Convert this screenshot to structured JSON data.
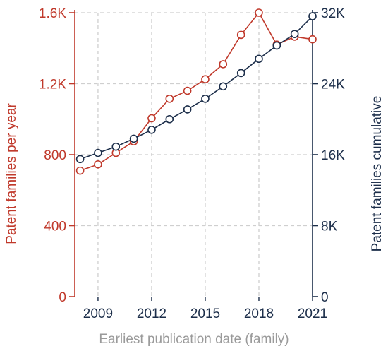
{
  "chart_data": {
    "type": "line",
    "xlabel": "Earliest publication date (family)",
    "ylabel_left": "Patent families per year",
    "ylabel_right": "Patent families cumulative",
    "x": [
      2008,
      2009,
      2010,
      2011,
      2012,
      2013,
      2014,
      2015,
      2016,
      2017,
      2018,
      2019,
      2020,
      2021
    ],
    "x_ticks": [
      "2009",
      "2012",
      "2015",
      "2018",
      "2021"
    ],
    "x_tick_values": [
      2009,
      2012,
      2015,
      2018,
      2021
    ],
    "xlim": [
      2007.7,
      2021
    ],
    "left_axis": {
      "ylim": [
        0,
        1600
      ],
      "ticks": [
        "0",
        "400",
        "800",
        "1.2K",
        "1.6K"
      ],
      "tick_values": [
        0,
        400,
        800,
        1200,
        1600
      ],
      "color": "#c0392b"
    },
    "right_axis": {
      "ylim": [
        0,
        32000
      ],
      "ticks": [
        "0",
        "8K",
        "16K",
        "24K",
        "32K"
      ],
      "tick_values": [
        0,
        8000,
        16000,
        24000,
        32000
      ],
      "color": "#1c2e4a"
    },
    "series": [
      {
        "axis": "left",
        "color": "#c0392b",
        "values": [
          710,
          745,
          810,
          875,
          1005,
          1115,
          1160,
          1225,
          1310,
          1475,
          1600,
          1420,
          1465,
          1450
        ]
      },
      {
        "axis": "right",
        "color": "#1c2e4a",
        "values": [
          15500,
          16200,
          16900,
          17800,
          18800,
          20000,
          21100,
          22300,
          23700,
          25200,
          26800,
          28300,
          29600,
          31600
        ]
      }
    ],
    "grid": true
  }
}
